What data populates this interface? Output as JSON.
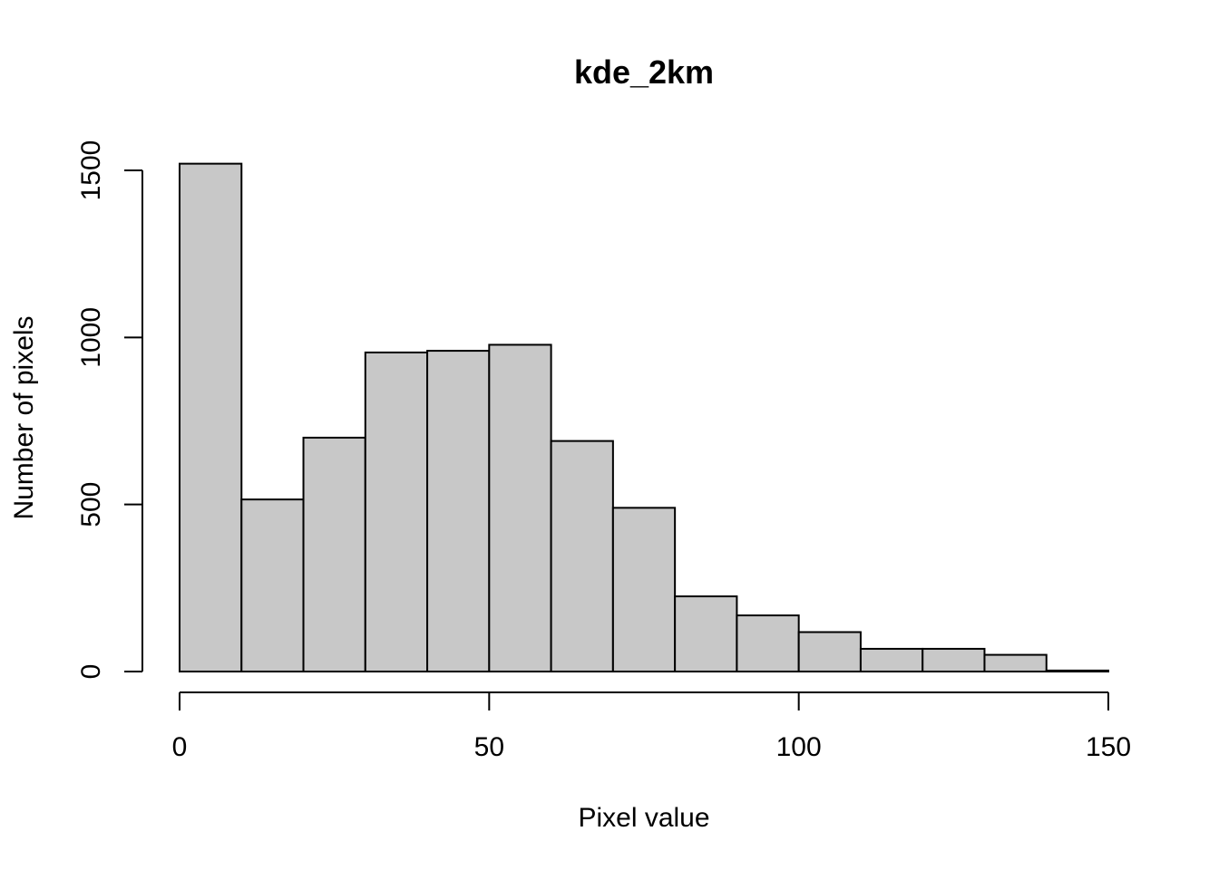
{
  "chart_data": {
    "type": "bar",
    "title": "kde_2km",
    "xlabel": "Pixel value",
    "ylabel": "Number of pixels",
    "bin_edges": [
      0,
      10,
      20,
      30,
      40,
      50,
      60,
      70,
      80,
      90,
      100,
      110,
      120,
      130,
      140,
      150
    ],
    "values": [
      1520,
      515,
      700,
      955,
      960,
      978,
      690,
      490,
      225,
      168,
      118,
      68,
      68,
      50,
      3
    ],
    "xlim": [
      0,
      150
    ],
    "ylim": [
      0,
      1500
    ],
    "x_ticks": [
      0,
      50,
      100,
      150
    ],
    "y_ticks": [
      0,
      500,
      1000,
      1500
    ],
    "x_tick_labels": [
      "0",
      "50",
      "100",
      "150"
    ],
    "y_tick_labels": [
      "0",
      "500",
      "1000",
      "1500"
    ],
    "bar_color": "#c8c8c8",
    "grid": false
  }
}
